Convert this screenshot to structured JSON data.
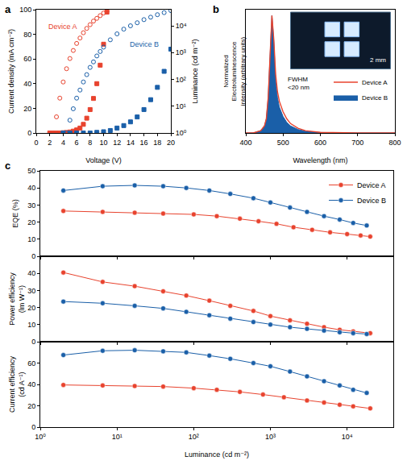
{
  "chart_data": [
    {
      "title": "a",
      "type": "scatter",
      "x_label": "Voltage (V)",
      "y_label": "Current density (mA cm⁻²)",
      "y2_label": "Luminance (cd m⁻²)",
      "xlim": [
        0,
        20
      ],
      "xticks": [
        0,
        2,
        4,
        6,
        8,
        10,
        12,
        14,
        16,
        18,
        20
      ],
      "ylim": [
        0,
        100
      ],
      "yticks": [
        0,
        20,
        40,
        60,
        80,
        100
      ],
      "y2lim": [
        1,
        40000
      ],
      "y2ticks": [
        {
          "value": 1,
          "label": "10⁰"
        },
        {
          "value": 10,
          "label": "10¹"
        },
        {
          "value": 100,
          "label": "10²"
        },
        {
          "value": 1000,
          "label": "10³"
        },
        {
          "value": 10000,
          "label": "10⁴"
        }
      ],
      "log": "y2",
      "series": [
        {
          "name": "Device A",
          "color": "#e8432e",
          "marker": "square",
          "x": [
            2,
            2.5,
            3,
            3.5,
            4,
            4.5,
            5,
            5.5,
            6,
            6.5,
            7,
            7.5,
            8,
            8.5,
            9,
            9.5,
            10,
            10.5
          ],
          "values": [
            0,
            0,
            0,
            0,
            0.2,
            0.4,
            0.8,
            1.5,
            2.5,
            4,
            7,
            12,
            19,
            28,
            40,
            55,
            72,
            98
          ]
        },
        {
          "name": "Device A",
          "color": "#e8432e",
          "marker": "circle-open",
          "axis": "y2",
          "x": [
            2.6,
            3,
            3.5,
            4,
            4.5,
            5,
            5.5,
            6,
            6.5,
            7,
            7.5,
            8,
            8.5,
            9,
            9.5,
            10,
            10.5
          ],
          "values": [
            1,
            4,
            20,
            80,
            250,
            600,
            1200,
            2200,
            3500,
            5500,
            8000,
            11000,
            15000,
            19000,
            24000,
            30000,
            36000
          ]
        },
        {
          "name": "Device B",
          "color": "#1a5fa8",
          "marker": "square",
          "x": [
            4,
            5,
            6,
            7,
            8,
            9,
            10,
            11,
            12,
            13,
            14,
            15,
            16,
            17,
            18,
            19,
            20
          ],
          "values": [
            0,
            0,
            0,
            0,
            0,
            0.5,
            1,
            2,
            4,
            6,
            9,
            13,
            19,
            27,
            37,
            50,
            68
          ]
        },
        {
          "name": "Device B",
          "color": "#1a5fa8",
          "marker": "circle-open",
          "axis": "y2",
          "x": [
            4.5,
            5,
            5.5,
            6,
            6.5,
            7,
            7.5,
            8,
            8.5,
            9,
            9.5,
            10,
            11,
            12,
            13,
            14,
            15,
            16,
            17,
            18,
            19,
            20
          ],
          "values": [
            1,
            3,
            8,
            20,
            40,
            80,
            150,
            280,
            450,
            750,
            1100,
            1600,
            3000,
            5000,
            7500,
            10000,
            13000,
            17000,
            21000,
            26000,
            31000,
            37000
          ]
        }
      ]
    },
    {
      "title": "b",
      "type": "line",
      "x_label": "Wavelength (nm)",
      "y_label": "Normalized Electroluminescence intensity (arbitrary units)",
      "xlim": [
        400,
        800
      ],
      "xticks": [
        400,
        500,
        600,
        700,
        800
      ],
      "ylim": [
        0,
        1.05
      ],
      "tick_labels": "x",
      "legend": "right",
      "annotations": [
        "FWHM <20 nm",
        "2 mm"
      ],
      "x": [
        400,
        420,
        440,
        450,
        455,
        460,
        465,
        470,
        475,
        480,
        485,
        490,
        500,
        510,
        520,
        540,
        560,
        600,
        700,
        800
      ],
      "series": [
        {
          "name": "Device A",
          "color": "#e8432e",
          "type": "line",
          "values": [
            0,
            0,
            0.02,
            0.06,
            0.12,
            0.3,
            0.65,
            1,
            0.8,
            0.5,
            0.35,
            0.27,
            0.18,
            0.12,
            0.08,
            0.04,
            0.02,
            0.005,
            0,
            0
          ]
        },
        {
          "name": "Device B",
          "color": "#1a5fa8",
          "type": "area",
          "values": [
            0,
            0,
            0.02,
            0.06,
            0.12,
            0.3,
            0.65,
            1,
            0.78,
            0.45,
            0.3,
            0.22,
            0.14,
            0.09,
            0.06,
            0.03,
            0.015,
            0.004,
            0,
            0
          ]
        }
      ]
    },
    {
      "title": "c",
      "type": "line",
      "marker": "circle",
      "log": "x",
      "legend": "upper right",
      "x_label": "Luminance (cd m⁻²)",
      "xlim": [
        1,
        40000
      ],
      "xticks": [
        {
          "value": 1,
          "label": "10⁰"
        },
        {
          "value": 10,
          "label": "10¹"
        },
        {
          "value": 100,
          "label": "10²"
        },
        {
          "value": 1000,
          "label": "10³"
        },
        {
          "value": 10000,
          "label": "10⁴"
        }
      ],
      "panels": [
        {
          "y_label": "EQE (%)",
          "ylim": [
            0,
            50
          ],
          "yticks": [
            0,
            10,
            20,
            30,
            40,
            50
          ],
          "series": [
            {
              "name": "Device A",
              "color": "#e8432e",
              "x": [
                2,
                6.5,
                17,
                40,
                100,
                200,
                400,
                700,
                1200,
                2000,
                3500,
                6000,
                10000,
                15000,
                20000
              ],
              "values": [
                26.5,
                26,
                25.5,
                25,
                24.5,
                23.5,
                22,
                20.5,
                19,
                17,
                15.5,
                14,
                13,
                12.2,
                11.5
              ]
            },
            {
              "name": "Device B",
              "color": "#1a5fa8",
              "x": [
                2,
                6.5,
                17,
                40,
                80,
                160,
                300,
                600,
                1000,
                1800,
                3000,
                5000,
                8000,
                12000,
                18000
              ],
              "values": [
                38.5,
                41,
                41.5,
                41,
                40,
                38.5,
                36.5,
                34,
                31.5,
                28.5,
                26,
                23.5,
                21.5,
                19.5,
                18
              ]
            }
          ]
        },
        {
          "y_label": "Power efficiency (lm W⁻¹)",
          "ylim": [
            0,
            50
          ],
          "yticks": [
            0,
            10,
            20,
            30,
            40
          ],
          "series": [
            {
              "name": "Device A",
              "color": "#e8432e",
              "x": [
                2,
                6.5,
                17,
                40,
                80,
                160,
                300,
                600,
                1000,
                1800,
                3000,
                5000,
                8000,
                12000,
                20000
              ],
              "values": [
                40.5,
                35,
                32.5,
                29.5,
                27,
                24,
                21,
                18,
                15,
                12.5,
                10.5,
                8.5,
                7,
                6,
                5
              ]
            },
            {
              "name": "Device B",
              "color": "#1a5fa8",
              "x": [
                2,
                6.5,
                17,
                40,
                80,
                160,
                300,
                600,
                1000,
                1800,
                3000,
                5000,
                8000,
                12000,
                18000
              ],
              "values": [
                23.5,
                22.5,
                21,
                19.5,
                17.5,
                15.5,
                13.5,
                11.5,
                10,
                8.5,
                7.5,
                6.5,
                5.5,
                5,
                4.5
              ]
            }
          ]
        },
        {
          "y_label": "Current efficiency (cd A⁻¹)",
          "ylim": [
            0,
            80
          ],
          "yticks": [
            0,
            20,
            40,
            60
          ],
          "series": [
            {
              "name": "Device A",
              "color": "#e8432e",
              "x": [
                2,
                6.5,
                17,
                40,
                100,
                200,
                400,
                800,
                1500,
                3000,
                5000,
                8000,
                12000,
                20000
              ],
              "values": [
                39.5,
                39,
                38.5,
                38,
                36.5,
                35,
                33,
                30.5,
                28,
                25,
                23,
                21,
                19.5,
                17.5
              ]
            },
            {
              "name": "Device B",
              "color": "#1a5fa8",
              "x": [
                2,
                6.5,
                17,
                40,
                80,
                160,
                300,
                600,
                1000,
                1800,
                3000,
                5000,
                8000,
                12000,
                18000
              ],
              "values": [
                67.5,
                71.5,
                72,
                71,
                70,
                67,
                64,
                60,
                57,
                52,
                47.5,
                43,
                39,
                35,
                32
              ]
            }
          ]
        }
      ]
    }
  ]
}
